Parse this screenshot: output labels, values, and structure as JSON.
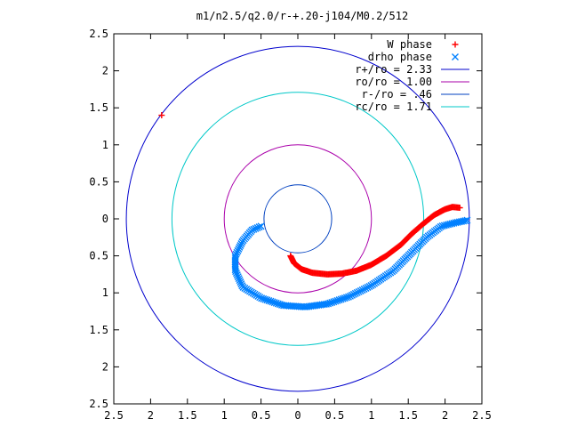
{
  "chart_data": {
    "type": "scatter",
    "title": "m1/n2.5/q2.0/r-+.20-j104/M0.2/512",
    "xlabel": "",
    "ylabel": "",
    "xlim": [
      -2.5,
      2.5
    ],
    "ylim": [
      -2.5,
      2.5
    ],
    "x_tick_labels": [
      "2.5",
      "2",
      "1.5",
      "1",
      "0.5",
      "0",
      "0.5",
      "1",
      "1.5",
      "2",
      "2.5"
    ],
    "y_tick_labels": [
      "2.5",
      "2",
      "1.5",
      "1",
      "0.5",
      "0",
      "0.5",
      "1",
      "1.5",
      "2",
      "2.5"
    ],
    "grid": false,
    "legend_position": "top-right",
    "series": [
      {
        "name": "W phase",
        "marker": "plus",
        "color": "#ff0000",
        "path": [
          [
            -0.1,
            -0.5
          ],
          [
            -0.05,
            -0.6
          ],
          [
            0.05,
            -0.68
          ],
          [
            0.2,
            -0.73
          ],
          [
            0.4,
            -0.75
          ],
          [
            0.6,
            -0.74
          ],
          [
            0.8,
            -0.7
          ],
          [
            1.0,
            -0.62
          ],
          [
            1.2,
            -0.5
          ],
          [
            1.4,
            -0.35
          ],
          [
            1.55,
            -0.2
          ],
          [
            1.7,
            -0.07
          ],
          [
            1.85,
            0.05
          ],
          [
            2.0,
            0.13
          ],
          [
            2.1,
            0.16
          ],
          [
            2.2,
            0.15
          ]
        ],
        "extra_points": [
          [
            -1.85,
            1.4
          ]
        ]
      },
      {
        "name": "drho phase",
        "marker": "cross",
        "color": "#0080ff",
        "path": [
          [
            -0.5,
            -0.1
          ],
          [
            -0.62,
            -0.15
          ],
          [
            -0.75,
            -0.3
          ],
          [
            -0.85,
            -0.5
          ],
          [
            -0.85,
            -0.7
          ],
          [
            -0.75,
            -0.92
          ],
          [
            -0.5,
            -1.07
          ],
          [
            -0.2,
            -1.17
          ],
          [
            0.1,
            -1.19
          ],
          [
            0.4,
            -1.15
          ],
          [
            0.7,
            -1.05
          ],
          [
            1.0,
            -0.9
          ],
          [
            1.3,
            -0.7
          ],
          [
            1.55,
            -0.45
          ],
          [
            1.75,
            -0.25
          ],
          [
            1.95,
            -0.1
          ],
          [
            2.15,
            -0.05
          ],
          [
            2.3,
            -0.02
          ]
        ]
      },
      {
        "name": "r+/ro = 2.33",
        "type": "circle",
        "radius": 2.33,
        "color": "#0000cd"
      },
      {
        "name": "ro/ro = 1.00",
        "type": "circle",
        "radius": 1.0,
        "color": "#aa00aa"
      },
      {
        "name": "r-/ro = .46",
        "type": "circle",
        "radius": 0.46,
        "color": "#0040c0"
      },
      {
        "name": "rc/ro = 1.71",
        "type": "circle",
        "radius": 1.71,
        "color": "#00c8c8"
      }
    ]
  }
}
